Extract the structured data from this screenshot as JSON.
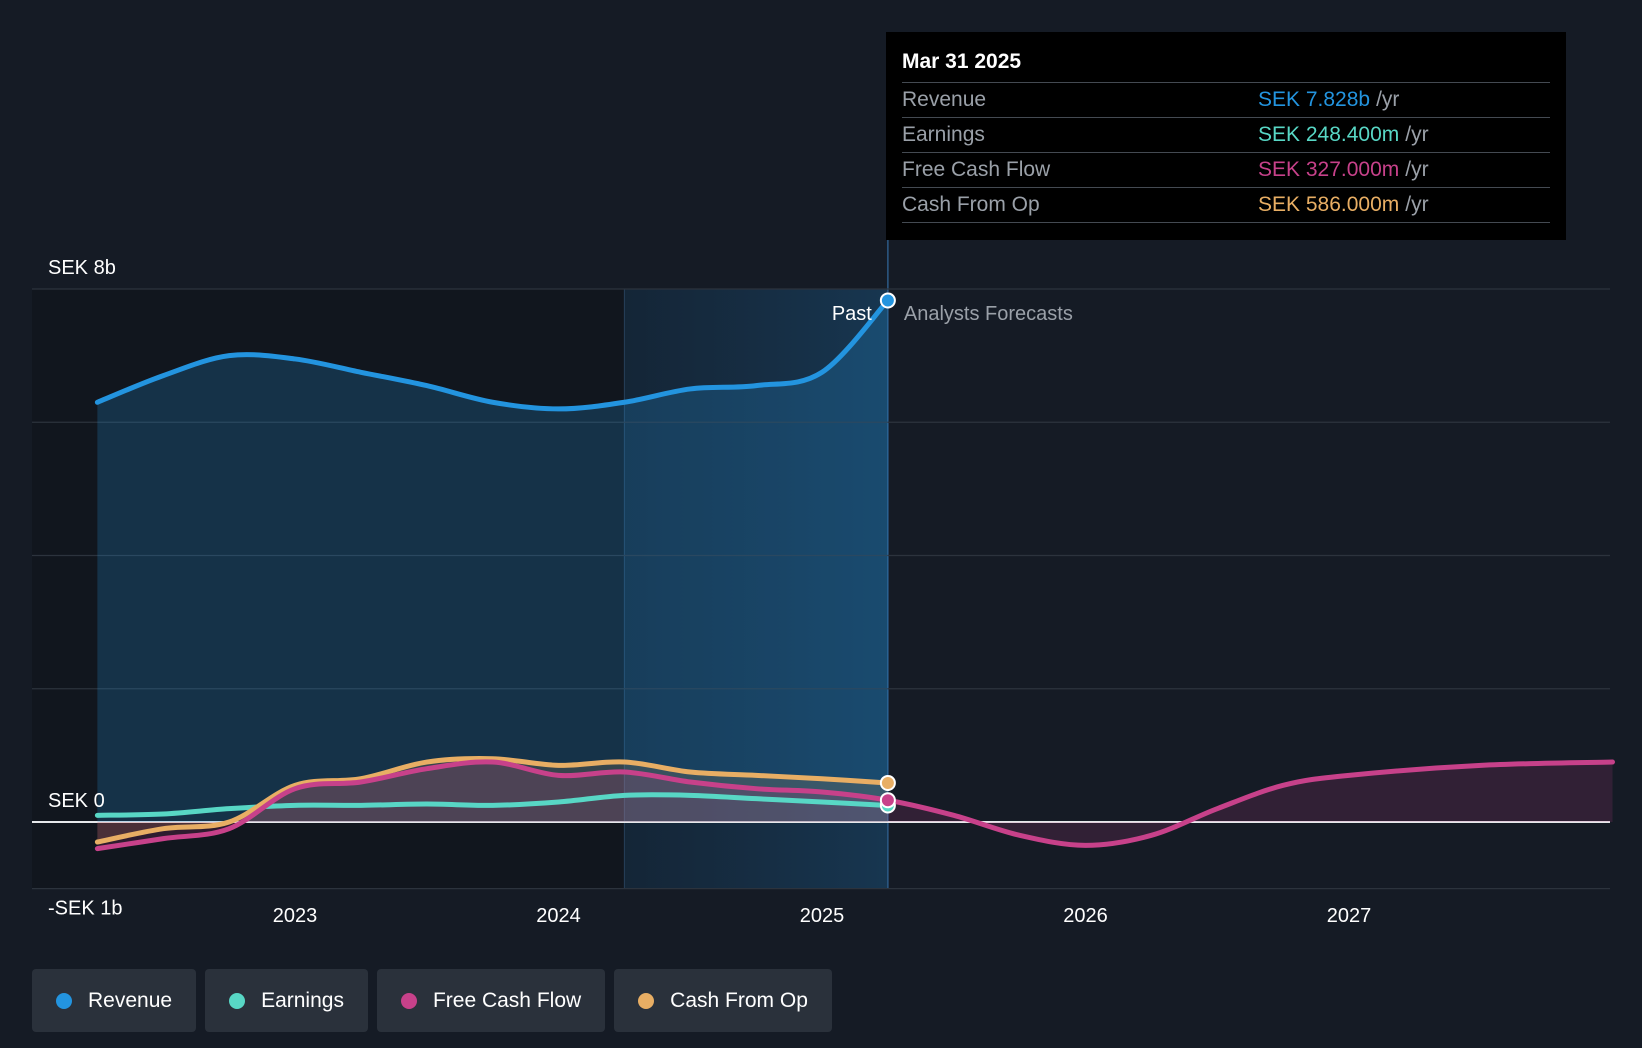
{
  "chart_data": {
    "type": "line",
    "title": "",
    "currency_unit": "SEK",
    "y_axis": {
      "min": -1,
      "max": 8,
      "unit": "billion SEK",
      "labels": [
        {
          "value": 8,
          "text": "SEK 8b"
        },
        {
          "value": 0,
          "text": "SEK 0"
        },
        {
          "value": -1,
          "text": "-SEK 1b"
        }
      ],
      "gridlines": [
        8,
        6,
        4,
        2,
        0,
        -1
      ]
    },
    "x_axis": {
      "min": 2022.0,
      "max": 2028.0,
      "ticks": [
        {
          "value": 2023,
          "label": "2023"
        },
        {
          "value": 2024,
          "label": "2024"
        },
        {
          "value": 2025,
          "label": "2025"
        },
        {
          "value": 2026,
          "label": "2026"
        },
        {
          "value": 2027,
          "label": "2027"
        }
      ]
    },
    "past_label": "Past",
    "forecast_label": "Analysts Forecasts",
    "divider_x": 2025.25,
    "highlight_start_x": 2024.25,
    "series": [
      {
        "name": "Revenue",
        "color": "#2394df",
        "fill": true,
        "points": [
          [
            2022.25,
            6.3
          ],
          [
            2022.5,
            6.7
          ],
          [
            2022.75,
            7.0
          ],
          [
            2023.0,
            6.95
          ],
          [
            2023.25,
            6.75
          ],
          [
            2023.5,
            6.55
          ],
          [
            2023.75,
            6.3
          ],
          [
            2024.0,
            6.2
          ],
          [
            2024.25,
            6.3
          ],
          [
            2024.5,
            6.5
          ],
          [
            2024.75,
            6.55
          ],
          [
            2025.0,
            6.75
          ],
          [
            2025.25,
            7.828
          ]
        ]
      },
      {
        "name": "Earnings",
        "color": "#58d7c5",
        "fill": false,
        "points": [
          [
            2022.25,
            0.1
          ],
          [
            2022.5,
            0.12
          ],
          [
            2022.75,
            0.2
          ],
          [
            2023.0,
            0.25
          ],
          [
            2023.25,
            0.25
          ],
          [
            2023.5,
            0.27
          ],
          [
            2023.75,
            0.25
          ],
          [
            2024.0,
            0.3
          ],
          [
            2024.25,
            0.4
          ],
          [
            2024.5,
            0.4
          ],
          [
            2024.75,
            0.35
          ],
          [
            2025.0,
            0.3
          ],
          [
            2025.25,
            0.2484
          ]
        ]
      },
      {
        "name": "Free Cash Flow",
        "color": "#c7418a",
        "fill": true,
        "points": [
          [
            2022.25,
            -0.4
          ],
          [
            2022.5,
            -0.25
          ],
          [
            2022.75,
            -0.1
          ],
          [
            2023.0,
            0.5
          ],
          [
            2023.25,
            0.6
          ],
          [
            2023.5,
            0.8
          ],
          [
            2023.75,
            0.9
          ],
          [
            2024.0,
            0.7
          ],
          [
            2024.25,
            0.75
          ],
          [
            2024.5,
            0.6
          ],
          [
            2024.75,
            0.5
          ],
          [
            2025.0,
            0.45
          ],
          [
            2025.25,
            0.327
          ],
          [
            2025.5,
            0.1
          ],
          [
            2025.75,
            -0.2
          ],
          [
            2026.0,
            -0.35
          ],
          [
            2026.25,
            -0.2
          ],
          [
            2026.5,
            0.2
          ],
          [
            2026.75,
            0.55
          ],
          [
            2027.0,
            0.7
          ],
          [
            2027.5,
            0.85
          ],
          [
            2028.0,
            0.9
          ]
        ]
      },
      {
        "name": "Cash From Op",
        "color": "#e8ae64",
        "fill": true,
        "points": [
          [
            2022.25,
            -0.3
          ],
          [
            2022.5,
            -0.1
          ],
          [
            2022.75,
            0.0
          ],
          [
            2023.0,
            0.55
          ],
          [
            2023.25,
            0.65
          ],
          [
            2023.5,
            0.9
          ],
          [
            2023.75,
            0.95
          ],
          [
            2024.0,
            0.85
          ],
          [
            2024.25,
            0.9
          ],
          [
            2024.5,
            0.75
          ],
          [
            2024.75,
            0.7
          ],
          [
            2025.0,
            0.65
          ],
          [
            2025.25,
            0.586
          ]
        ]
      }
    ]
  },
  "tooltip": {
    "date": "Mar 31 2025",
    "rows": [
      {
        "name": "Revenue",
        "value": "SEK 7.828b",
        "unit": "/yr",
        "color": "#2394df"
      },
      {
        "name": "Earnings",
        "value": "SEK 248.400m",
        "unit": "/yr",
        "color": "#58d7c5"
      },
      {
        "name": "Free Cash Flow",
        "value": "SEK 327.000m",
        "unit": "/yr",
        "color": "#c7418a"
      },
      {
        "name": "Cash From Op",
        "value": "SEK 586.000m",
        "unit": "/yr",
        "color": "#e8ae64"
      }
    ]
  },
  "legend": [
    {
      "label": "Revenue",
      "color": "#2394df"
    },
    {
      "label": "Earnings",
      "color": "#58d7c5"
    },
    {
      "label": "Free Cash Flow",
      "color": "#c7418a"
    },
    {
      "label": "Cash From Op",
      "color": "#e8ae64"
    }
  ]
}
